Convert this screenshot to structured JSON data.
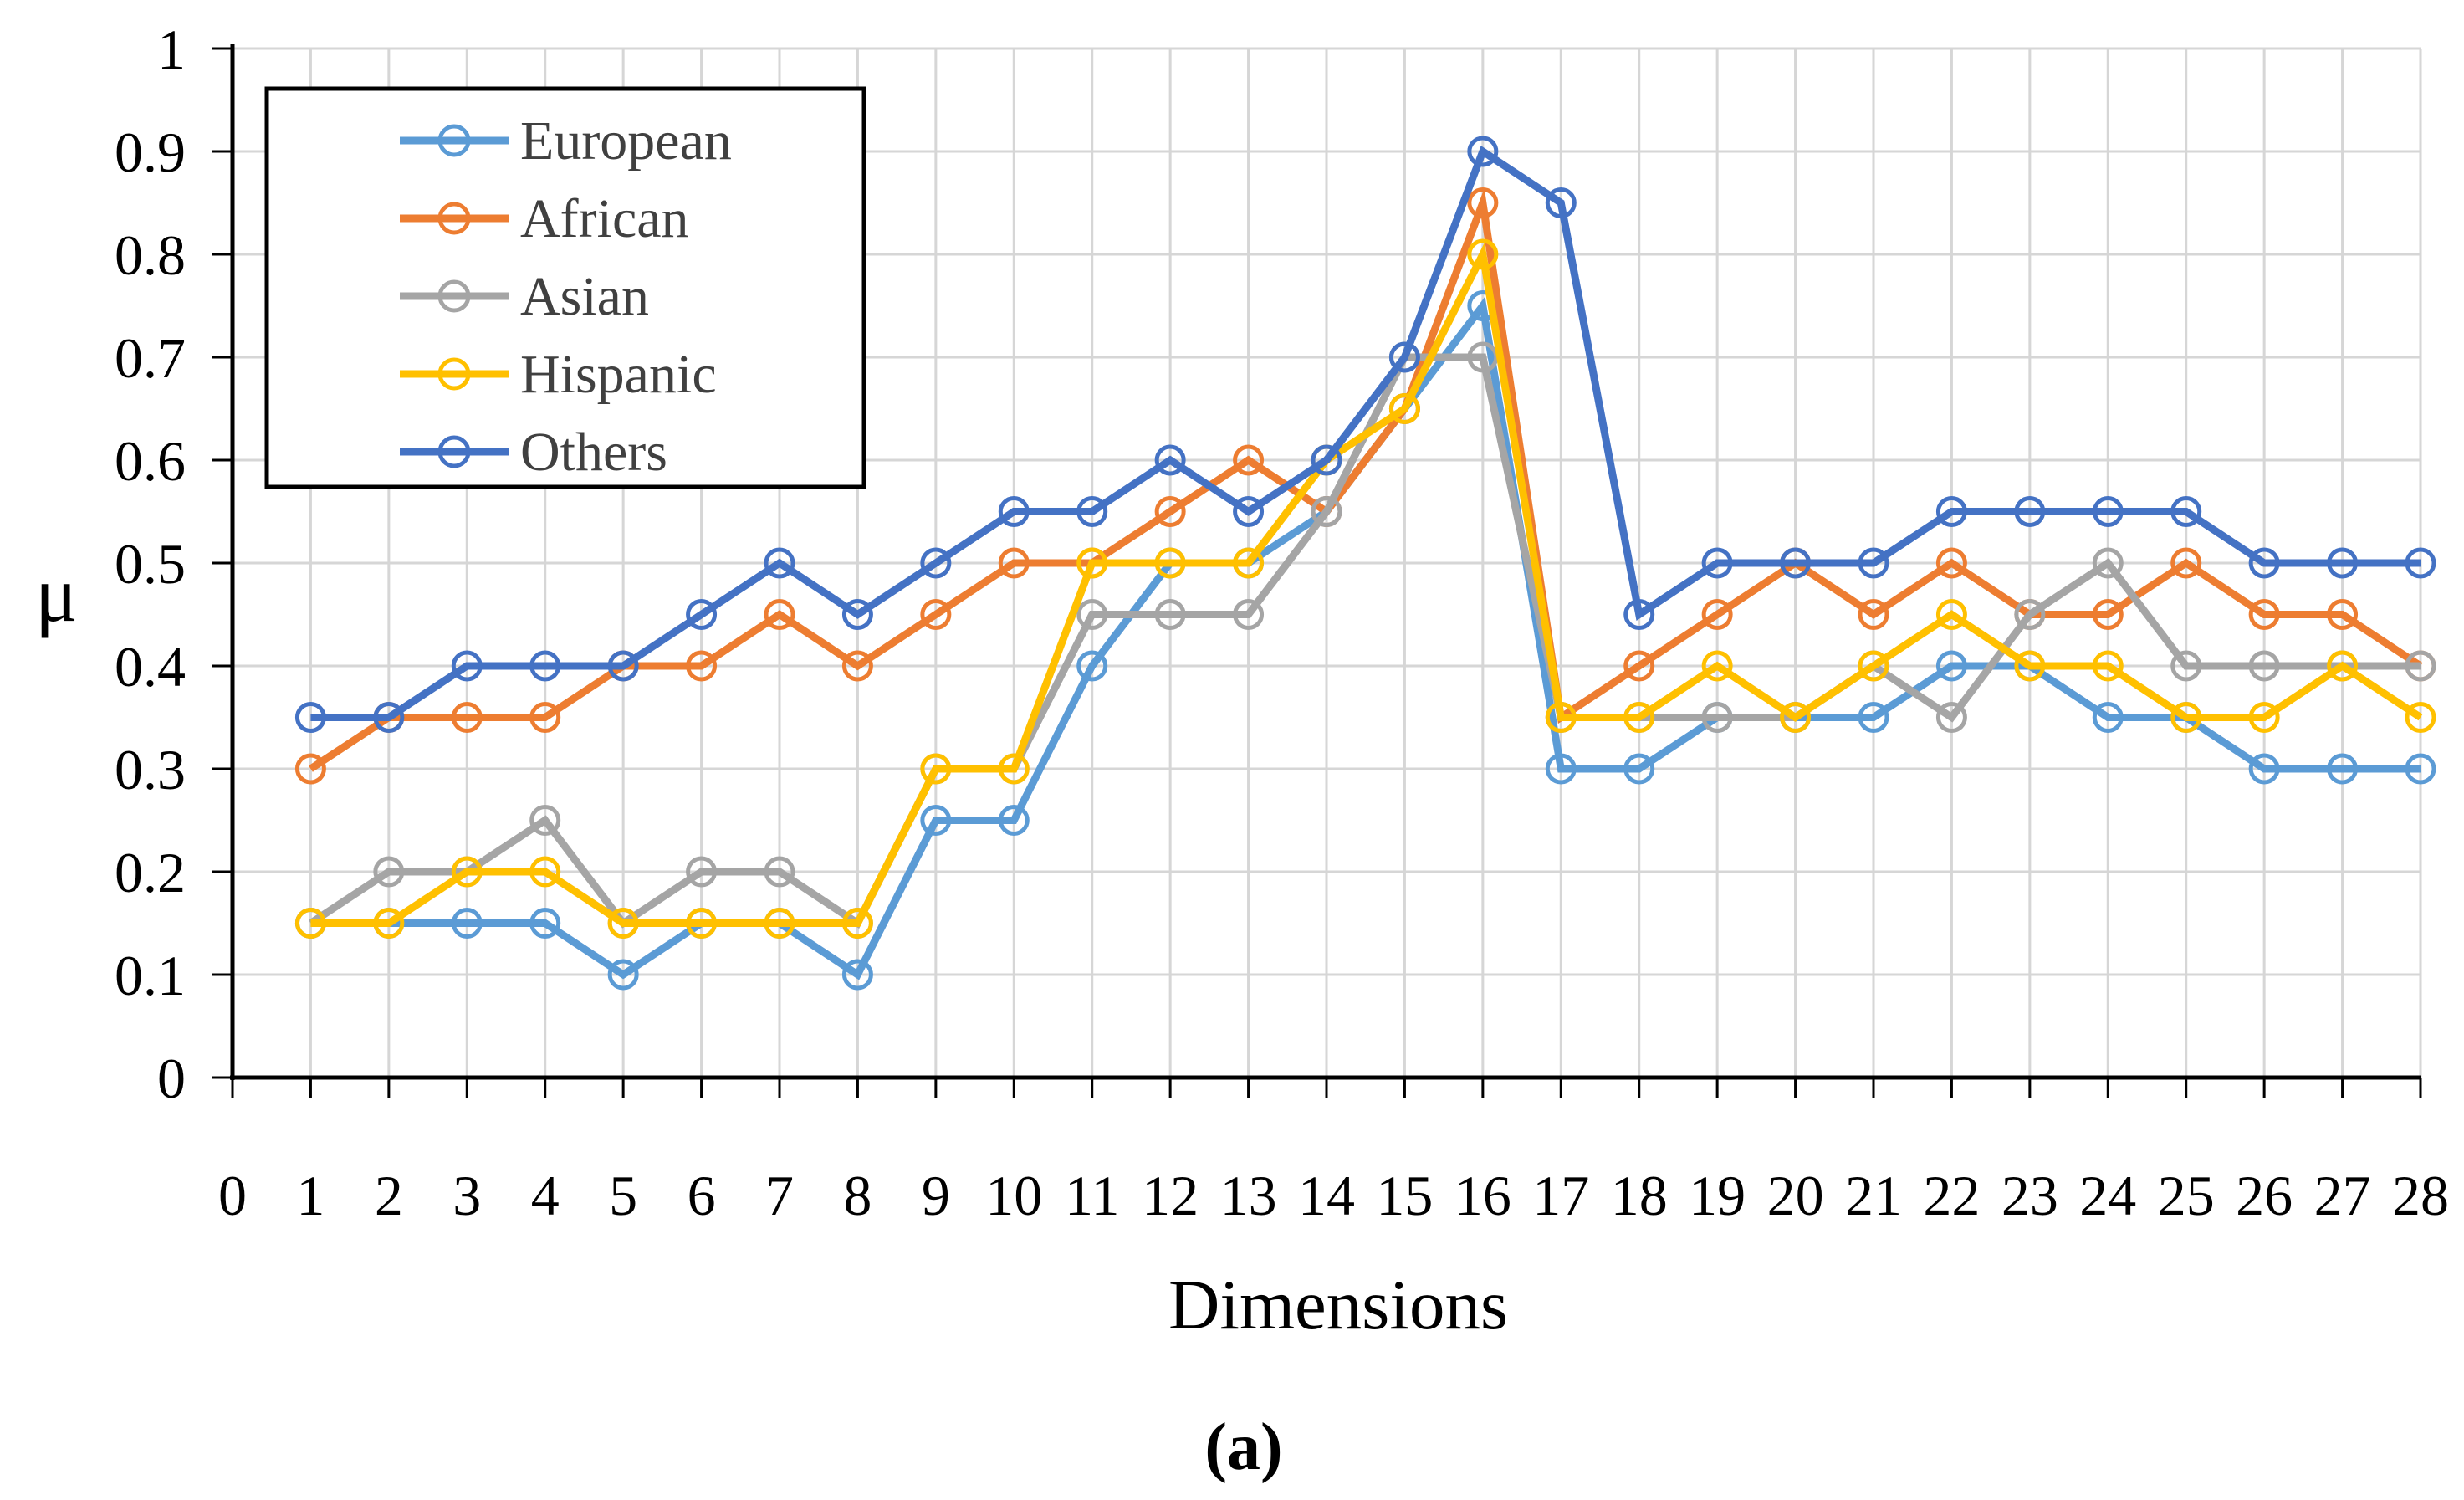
{
  "caption": "(a)",
  "chart_data": {
    "type": "line",
    "title": "",
    "xlabel": "Dimensions",
    "ylabel": "μ",
    "xlim": [
      0,
      28
    ],
    "ylim": [
      0,
      1
    ],
    "grid": true,
    "legend_position": "top-left",
    "x_ticks": [
      0,
      1,
      2,
      3,
      4,
      5,
      6,
      7,
      8,
      9,
      10,
      11,
      12,
      13,
      14,
      15,
      16,
      17,
      18,
      19,
      20,
      21,
      22,
      23,
      24,
      25,
      26,
      27,
      28
    ],
    "y_ticks": [
      0,
      0.1,
      0.2,
      0.3,
      0.4,
      0.5,
      0.6,
      0.7,
      0.8,
      0.9,
      1
    ],
    "x": [
      1,
      2,
      3,
      4,
      5,
      6,
      7,
      8,
      9,
      10,
      11,
      12,
      13,
      14,
      15,
      16,
      17,
      18,
      19,
      20,
      21,
      22,
      23,
      24,
      25,
      26,
      27,
      28
    ],
    "series": [
      {
        "name": "European",
        "color": "#5B9BD5",
        "values": [
          0.15,
          0.15,
          0.15,
          0.15,
          0.1,
          0.15,
          0.15,
          0.1,
          0.25,
          0.25,
          0.4,
          0.5,
          0.5,
          0.55,
          0.65,
          0.75,
          0.3,
          0.3,
          0.35,
          0.35,
          0.35,
          0.4,
          0.4,
          0.35,
          0.35,
          0.3,
          0.3,
          0.3
        ]
      },
      {
        "name": "African",
        "color": "#ED7D31",
        "values": [
          0.3,
          0.35,
          0.35,
          0.35,
          0.4,
          0.4,
          0.45,
          0.4,
          0.45,
          0.5,
          0.5,
          0.55,
          0.6,
          0.55,
          0.65,
          0.85,
          0.35,
          0.4,
          0.45,
          0.5,
          0.45,
          0.5,
          0.45,
          0.45,
          0.5,
          0.45,
          0.45,
          0.4
        ]
      },
      {
        "name": "Asian",
        "color": "#A5A5A5",
        "values": [
          0.15,
          0.2,
          0.2,
          0.25,
          0.15,
          0.2,
          0.2,
          0.15,
          0.3,
          0.3,
          0.45,
          0.45,
          0.45,
          0.55,
          0.7,
          0.7,
          0.35,
          0.35,
          0.35,
          0.35,
          0.4,
          0.35,
          0.45,
          0.5,
          0.4,
          0.4,
          0.4,
          0.4
        ]
      },
      {
        "name": "Hispanic",
        "color": "#FFC000",
        "values": [
          0.15,
          0.15,
          0.2,
          0.2,
          0.15,
          0.15,
          0.15,
          0.15,
          0.3,
          0.3,
          0.5,
          0.5,
          0.5,
          0.6,
          0.65,
          0.8,
          0.35,
          0.35,
          0.4,
          0.35,
          0.4,
          0.45,
          0.4,
          0.4,
          0.35,
          0.35,
          0.4,
          0.35
        ]
      },
      {
        "name": "Others",
        "color": "#4472C4",
        "values": [
          0.35,
          0.35,
          0.4,
          0.4,
          0.4,
          0.45,
          0.5,
          0.45,
          0.5,
          0.55,
          0.55,
          0.6,
          0.55,
          0.6,
          0.7,
          0.9,
          0.85,
          0.45,
          0.5,
          0.5,
          0.5,
          0.55,
          0.55,
          0.55,
          0.55,
          0.5,
          0.5,
          0.5
        ]
      }
    ],
    "style": {
      "gridline_color": "#D6D6D6",
      "axis_color": "#000000",
      "legend_text_color": "#404040",
      "background": "#FFFFFF"
    }
  }
}
